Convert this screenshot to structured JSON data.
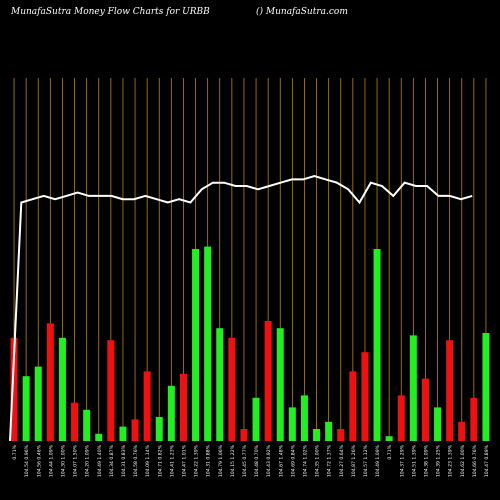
{
  "header": {
    "title_left": "MunafaSutra  Money Flow  Charts for URBB",
    "title_right": "() MunafaSutra.com"
  },
  "colors": {
    "background": "#000000",
    "gridline": "#b8860b",
    "up": "#22ee22",
    "down": "#ee1111",
    "line": "#ffffff",
    "text": "#ffffff"
  },
  "chart_data": {
    "type": "bar",
    "title": "MunafaSutra  Money Flow  Charts for URBB",
    "bars": [
      {
        "color": "down",
        "value": 0.43,
        "label": "0.71%"
      },
      {
        "color": "up",
        "value": 0.27,
        "label": "104.54  0.96%"
      },
      {
        "color": "up",
        "value": 0.31,
        "label": "104.56  0.46%"
      },
      {
        "color": "down",
        "value": 0.49,
        "label": "104.44  1.09%"
      },
      {
        "color": "up",
        "value": 0.43,
        "label": "104.30  1.00%"
      },
      {
        "color": "down",
        "value": 0.16,
        "label": "104.07  1.50%"
      },
      {
        "color": "up",
        "value": 0.13,
        "label": "104.20  1.09%"
      },
      {
        "color": "up",
        "value": 0.03,
        "label": "104.49  1.40%"
      },
      {
        "color": "down",
        "value": 0.42,
        "label": "104.34  0.87%"
      },
      {
        "color": "up",
        "value": 0.06,
        "label": "104.31  0.83%"
      },
      {
        "color": "down",
        "value": 0.09,
        "label": "104.58  0.76%"
      },
      {
        "color": "down",
        "value": 0.29,
        "label": "104.09  1.14%"
      },
      {
        "color": "up",
        "value": 0.1,
        "label": "104.71  0.82%"
      },
      {
        "color": "up",
        "value": 0.23,
        "label": "104.41  1.23%"
      },
      {
        "color": "down",
        "value": 0.28,
        "label": "104.47  1.01%"
      },
      {
        "color": "up",
        "value": 0.8,
        "label": "104.22  1.39%"
      },
      {
        "color": "up",
        "value": 0.81,
        "label": "104.31  0.88%"
      },
      {
        "color": "up",
        "value": 0.47,
        "label": "104.79  1.06%"
      },
      {
        "color": "down",
        "value": 0.43,
        "label": "104.15  1.22%"
      },
      {
        "color": "down",
        "value": 0.05,
        "label": "104.45  0.77%"
      },
      {
        "color": "up",
        "value": 0.18,
        "label": "104.48  0.70%"
      },
      {
        "color": "down",
        "value": 0.5,
        "label": "104.43  0.92%"
      },
      {
        "color": "up",
        "value": 0.47,
        "label": "104.67  1.48%"
      },
      {
        "color": "up",
        "value": 0.14,
        "label": "104.69  0.84%"
      },
      {
        "color": "up",
        "value": 0.19,
        "label": "104.74  1.02%"
      },
      {
        "color": "up",
        "value": 0.05,
        "label": "104.35  1.00%"
      },
      {
        "color": "up",
        "value": 0.08,
        "label": "104.72  1.37%"
      },
      {
        "color": "down",
        "value": 0.05,
        "label": "104.27  0.64%"
      },
      {
        "color": "down",
        "value": 0.29,
        "label": "104.87  1.26%"
      },
      {
        "color": "down",
        "value": 0.37,
        "label": "104.57  1.12%"
      },
      {
        "color": "up",
        "value": 0.8,
        "label": "104.49  1.09%"
      },
      {
        "color": "up",
        "value": 0.02,
        "label": "0.71%"
      },
      {
        "color": "down",
        "value": 0.19,
        "label": "104.37  1.29%"
      },
      {
        "color": "up",
        "value": 0.44,
        "label": "104.51  1.39%"
      },
      {
        "color": "down",
        "value": 0.26,
        "label": "104.38  1.09%"
      },
      {
        "color": "up",
        "value": 0.14,
        "label": "104.39  1.25%"
      },
      {
        "color": "down",
        "value": 0.42,
        "label": "104.23  1.39%"
      },
      {
        "color": "down",
        "value": 0.08,
        "label": "104.62  1.00%"
      },
      {
        "color": "down",
        "value": 0.18,
        "label": "104.66  0.76%"
      },
      {
        "color": "up",
        "value": 0.45,
        "label": "104.47  0.89%"
      }
    ],
    "line_values": [
      0.0,
      0.72,
      0.73,
      0.74,
      0.73,
      0.74,
      0.75,
      0.74,
      0.74,
      0.74,
      0.73,
      0.73,
      0.74,
      0.73,
      0.72,
      0.73,
      0.72,
      0.76,
      0.78,
      0.78,
      0.77,
      0.77,
      0.76,
      0.77,
      0.78,
      0.79,
      0.79,
      0.8,
      0.79,
      0.78,
      0.76,
      0.72,
      0.78,
      0.77,
      0.74,
      0.78,
      0.77,
      0.77,
      0.74,
      0.74,
      0.73,
      0.74
    ],
    "grid": true
  }
}
